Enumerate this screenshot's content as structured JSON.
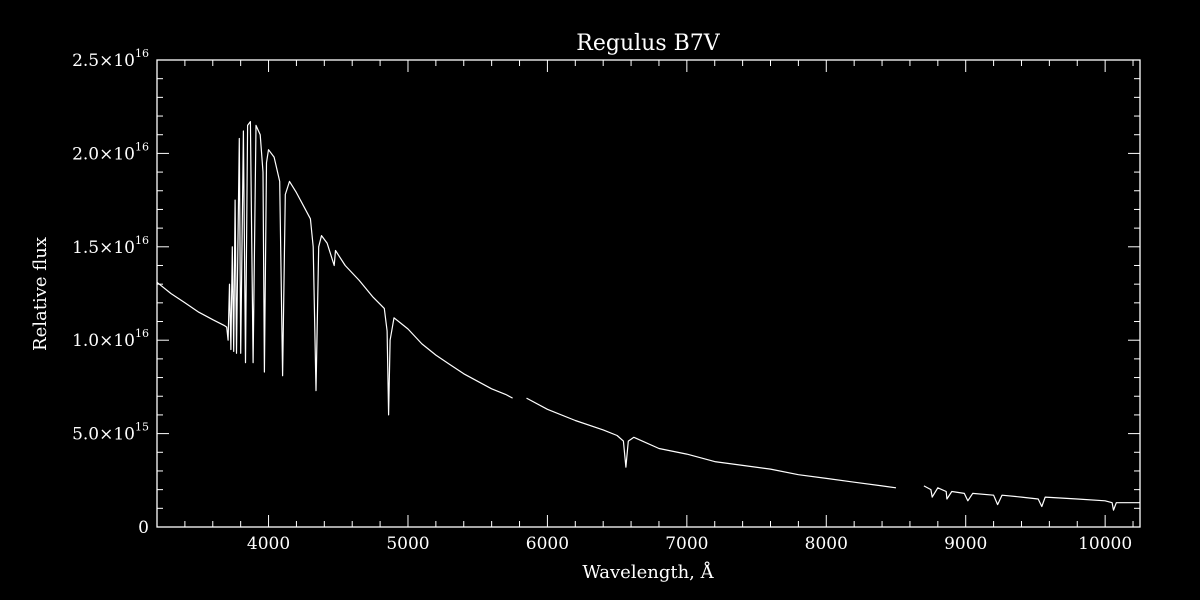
{
  "chart_data": {
    "type": "line",
    "title": "Regulus   B7V",
    "xlabel": "Wavelength, Å",
    "ylabel": "Relative flux",
    "xlim": [
      3200,
      10250
    ],
    "ylim": [
      0,
      2.5e+16
    ],
    "grid": false,
    "colors": {
      "background": "#000000",
      "foreground": "#ffffff"
    },
    "x_ticks": [
      {
        "value": 4000,
        "label": "4000"
      },
      {
        "value": 5000,
        "label": "5000"
      },
      {
        "value": 6000,
        "label": "6000"
      },
      {
        "value": 7000,
        "label": "7000"
      },
      {
        "value": 8000,
        "label": "8000"
      },
      {
        "value": 9000,
        "label": "9000"
      },
      {
        "value": 10000,
        "label": "10000"
      }
    ],
    "y_ticks": [
      {
        "value": 0,
        "mant": "0",
        "exp": ""
      },
      {
        "value": 5000000000000000.0,
        "mant": "5.0×10",
        "exp": "15"
      },
      {
        "value": 1e+16,
        "mant": "1.0×10",
        "exp": "16"
      },
      {
        "value": 1.5e+16,
        "mant": "1.5×10",
        "exp": "16"
      },
      {
        "value": 2e+16,
        "mant": "2.0×10",
        "exp": "16"
      },
      {
        "value": 2.5e+16,
        "mant": "2.5×10",
        "exp": "16"
      }
    ],
    "series": [
      {
        "segments": [
          [
            [
              3200,
              1.31e+16
            ],
            [
              3300,
              1.25e+16
            ],
            [
              3400,
              1.2e+16
            ],
            [
              3500,
              1.15e+16
            ],
            [
              3600,
              1.11e+16
            ],
            [
              3680,
              1.08e+16
            ],
            [
              3700,
              1.07e+16
            ],
            [
              3710,
              1e+16
            ],
            [
              3720,
              1.3e+16
            ],
            [
              3730,
              9500000000000000.0
            ],
            [
              3740,
              1.5e+16
            ],
            [
              3750,
              9400000000000000.0
            ],
            [
              3760,
              1.75e+16
            ],
            [
              3770,
              9300000000000000.0
            ],
            [
              3790,
              2.08e+16
            ],
            [
              3800,
              9300000000000000.0
            ],
            [
              3820,
              2.12e+16
            ],
            [
              3835,
              8800000000000000.0
            ],
            [
              3850,
              2.15e+16
            ],
            [
              3870,
              2.17e+16
            ],
            [
              3889,
              8800000000000000.0
            ],
            [
              3910,
              2.15e+16
            ],
            [
              3940,
              2.1e+16
            ],
            [
              3960,
              1.9e+16
            ],
            [
              3970,
              8300000000000000.0
            ],
            [
              3985,
              1.95e+16
            ],
            [
              4000,
              2.02e+16
            ],
            [
              4040,
              1.98e+16
            ],
            [
              4080,
              1.85e+16
            ],
            [
              4101,
              8100000000000000.0
            ],
            [
              4120,
              1.78e+16
            ],
            [
              4150,
              1.85e+16
            ],
            [
              4200,
              1.79e+16
            ],
            [
              4250,
              1.72e+16
            ],
            [
              4300,
              1.65e+16
            ],
            [
              4320,
              1.5e+16
            ],
            [
              4340,
              7300000000000000.0
            ],
            [
              4360,
              1.5e+16
            ],
            [
              4380,
              1.56e+16
            ],
            [
              4420,
              1.52e+16
            ],
            [
              4471,
              1.4e+16
            ],
            [
              4480,
              1.48e+16
            ],
            [
              4550,
              1.4e+16
            ],
            [
              4650,
              1.32e+16
            ],
            [
              4750,
              1.23e+16
            ],
            [
              4830,
              1.17e+16
            ],
            [
              4850,
              1.05e+16
            ],
            [
              4861,
              6000000000000000.0
            ],
            [
              4872,
              1e+16
            ],
            [
              4900,
              1.12e+16
            ],
            [
              4950,
              1.09e+16
            ],
            [
              5000,
              1.06e+16
            ],
            [
              5100,
              9800000000000000.0
            ],
            [
              5200,
              9200000000000000.0
            ],
            [
              5300,
              8700000000000000.0
            ],
            [
              5400,
              8200000000000000.0
            ],
            [
              5500,
              7800000000000000.0
            ],
            [
              5600,
              7400000000000000.0
            ],
            [
              5700,
              7100000000000000.0
            ],
            [
              5750,
              6900000000000000.0
            ]
          ],
          [
            [
              5850,
              6900000000000000.0
            ],
            [
              6000,
              6300000000000000.0
            ],
            [
              6200,
              5700000000000000.0
            ],
            [
              6400,
              5200000000000000.0
            ],
            [
              6500,
              4900000000000000.0
            ],
            [
              6545,
              4600000000000000.0
            ],
            [
              6563,
              3200000000000000.0
            ],
            [
              6580,
              4600000000000000.0
            ],
            [
              6620,
              4800000000000000.0
            ],
            [
              6800,
              4200000000000000.0
            ],
            [
              7000,
              3900000000000000.0
            ],
            [
              7200,
              3500000000000000.0
            ],
            [
              7400,
              3300000000000000.0
            ],
            [
              7600,
              3100000000000000.0
            ],
            [
              7800,
              2800000000000000.0
            ],
            [
              8000,
              2600000000000000.0
            ],
            [
              8200,
              2400000000000000.0
            ],
            [
              8400,
              2200000000000000.0
            ],
            [
              8500,
              2100000000000000.0
            ]
          ],
          [
            [
              8700,
              2200000000000000.0
            ],
            [
              8750,
              2000000000000000.0
            ],
            [
              8760,
              1600000000000000.0
            ],
            [
              8800,
              2100000000000000.0
            ],
            [
              8860,
              1900000000000000.0
            ],
            [
              8865,
              1500000000000000.0
            ],
            [
              8900,
              1900000000000000.0
            ],
            [
              8990,
              1800000000000000.0
            ],
            [
              9015,
              1400000000000000.0
            ],
            [
              9050,
              1800000000000000.0
            ],
            [
              9200,
              1700000000000000.0
            ],
            [
              9229,
              1200000000000000.0
            ],
            [
              9260,
              1700000000000000.0
            ],
            [
              9400,
              1600000000000000.0
            ],
            [
              9520,
              1500000000000000.0
            ],
            [
              9546,
              1100000000000000.0
            ],
            [
              9570,
              1600000000000000.0
            ],
            [
              9800,
              1500000000000000.0
            ],
            [
              10000,
              1400000000000000.0
            ],
            [
              10050,
              1300000000000000.0
            ],
            [
              10060,
              900000000000000.0
            ],
            [
              10080,
              1300000000000000.0
            ],
            [
              10250,
              1300000000000000.0
            ]
          ]
        ]
      }
    ]
  }
}
